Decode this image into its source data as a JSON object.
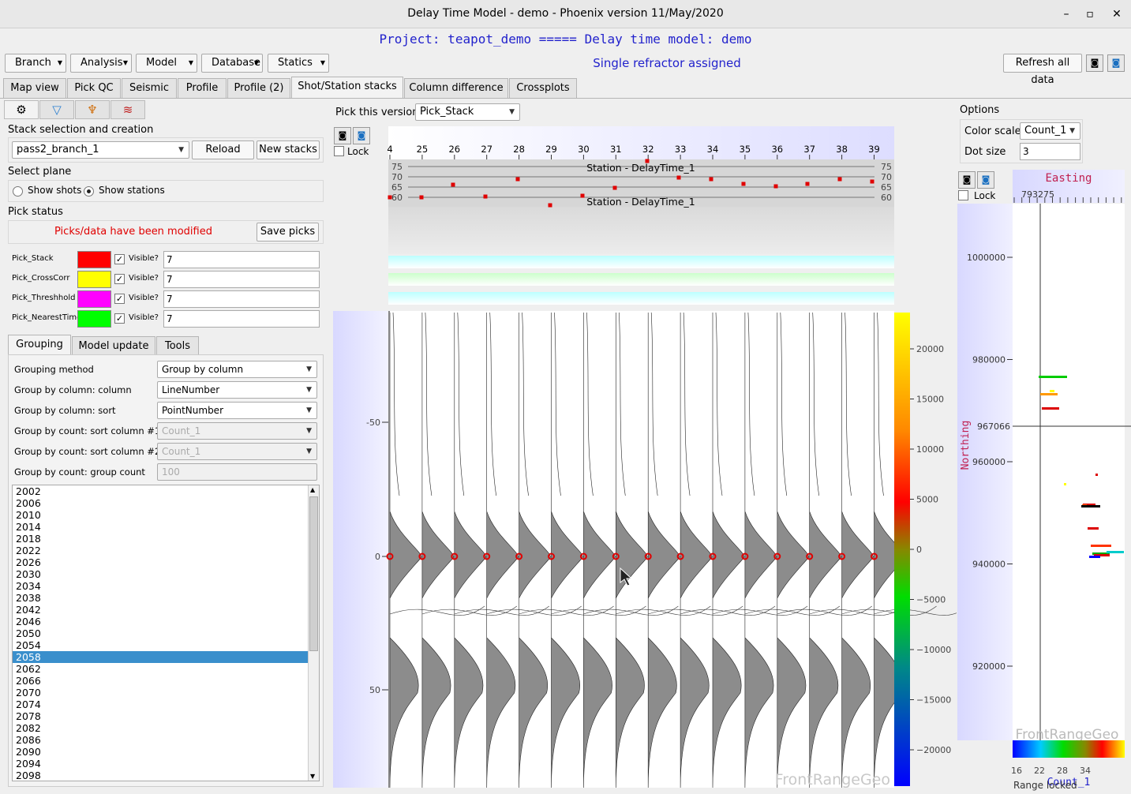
{
  "window": {
    "title": "Delay Time Model - demo - Phoenix version 11/May/2020",
    "min": "–",
    "max": "▫",
    "close": "✕"
  },
  "project_line": "Project: teapot_demo ===== Delay time model: demo",
  "menus": [
    "Branch",
    "Analysis",
    "Model",
    "Database",
    "Statics"
  ],
  "status": "Single refractor assigned",
  "refresh_label": "Refresh all data",
  "tabs": [
    "Map view",
    "Pick QC",
    "Seismic",
    "Profile",
    "Profile (2)",
    "Shot/Station stacks",
    "Column difference",
    "Crossplots"
  ],
  "left": {
    "stack_title": "Stack selection and creation",
    "stack_value": "pass2_branch_1",
    "reload": "Reload",
    "new_stacks": "New stacks",
    "plane_title": "Select plane",
    "show_shots": "Show shots",
    "show_stations": "Show stations",
    "pick_status_title": "Pick status",
    "modified": "Picks/data have been modified",
    "save_picks": "Save picks",
    "picks": [
      {
        "name": "Pick_Stack",
        "color": "#ff0000",
        "visible": "Visible?",
        "value": "7"
      },
      {
        "name": "Pick_CrossCorr",
        "color": "#ffff00",
        "visible": "Visible?",
        "value": "7"
      },
      {
        "name": "Pick_Threshhold",
        "color": "#ff00ff",
        "visible": "Visible?",
        "value": "7"
      },
      {
        "name": "Pick_NearestTime",
        "color": "#00ff00",
        "visible": "Visible?",
        "value": "7"
      }
    ],
    "subtabs": [
      "Grouping",
      "Model update",
      "Tools"
    ],
    "rows": [
      {
        "label": "Grouping method",
        "value": "Group by column",
        "disabled": false
      },
      {
        "label": "Group by column: column",
        "value": "LineNumber",
        "disabled": false
      },
      {
        "label": "Group by column: sort",
        "value": "PointNumber",
        "disabled": false
      },
      {
        "label": "Group by count: sort column #1",
        "value": "Count_1",
        "disabled": true
      },
      {
        "label": "Group by count: sort column #2",
        "value": "Count_1",
        "disabled": true
      },
      {
        "label": "Group by count: group count",
        "value": "100",
        "disabled": true
      }
    ],
    "list": [
      "2002",
      "2006",
      "2010",
      "2014",
      "2018",
      "2022",
      "2026",
      "2030",
      "2034",
      "2038",
      "2042",
      "2046",
      "2050",
      "2054",
      "2058",
      "2062",
      "2066",
      "2070",
      "2074",
      "2078",
      "2082",
      "2086",
      "2090",
      "2094",
      "2098"
    ],
    "selected": "2058"
  },
  "center": {
    "pick_version_label": "Pick this version",
    "pick_version": "Pick_Stack",
    "lock": "Lock",
    "stations": [
      "4",
      "25",
      "26",
      "27",
      "28",
      "29",
      "30",
      "31",
      "32",
      "33",
      "34",
      "35",
      "36",
      "37",
      "38",
      "39"
    ],
    "delay_ticks": [
      "75",
      "70",
      "65",
      "60"
    ],
    "delay_title": "Station - DelayTime_1",
    "y_ticks": [
      "-50",
      "0",
      "50"
    ],
    "colorbar_ticks": [
      "20000",
      "15000",
      "10000",
      "5000",
      "0",
      "−5000",
      "−10000",
      "−15000",
      "−20000"
    ],
    "watermark": "FrontRangeGeo"
  },
  "right": {
    "options": "Options",
    "color_scale_label": "Color scale",
    "color_scale": "Count_1",
    "dot_size_label": "Dot size",
    "dot_size": "3",
    "lock": "Lock",
    "easting": "Easting",
    "easting_value": "793275",
    "northing": "Northing",
    "northing_value": "967066",
    "n_ticks": [
      "1000000",
      "980000",
      "960000",
      "940000",
      "920000"
    ],
    "cb_ticks": [
      "16",
      "22",
      "28",
      "34"
    ],
    "cb_title": "Count_1",
    "range_locked": "Range locked",
    "watermark": "FrontRangeGeo"
  }
}
